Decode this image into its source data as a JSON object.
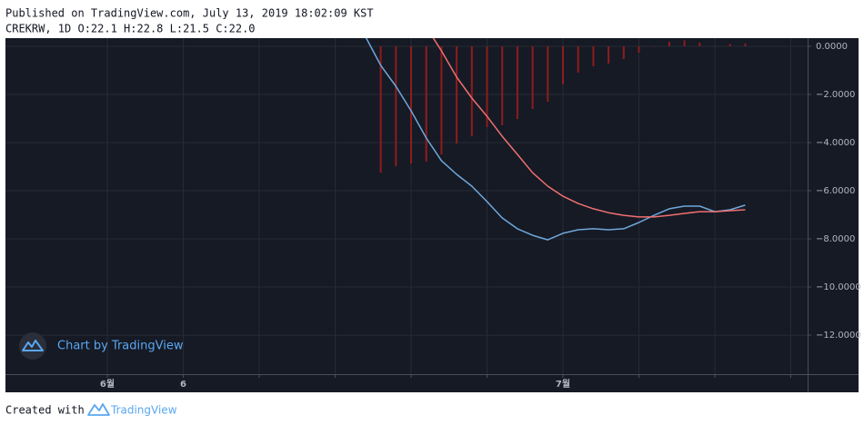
{
  "chart_data": {
    "type": "line",
    "title": "Published on TradingView.com, July 13, 2019 18:02:09 KST",
    "subtitle": "CREKRW, 1D O:22.1 H:22.8 L:21.5 C:22.0",
    "watermark": "Chart by TradingView",
    "footer": {
      "prefix": "Created with",
      "brand": "TradingView"
    },
    "categories": [
      "6월",
      null,
      null,
      null,
      null,
      "6",
      null,
      null,
      null,
      null,
      null,
      null,
      null,
      null,
      null,
      null,
      null,
      null,
      null,
      null,
      null,
      null,
      null,
      null,
      null,
      null,
      null,
      null,
      null,
      null,
      "7월",
      null,
      null,
      null,
      null,
      null,
      null,
      null,
      null,
      null,
      null,
      null,
      null
    ],
    "series": [
      {
        "type": "bar",
        "color": "#8e1c1c",
        "values": [
          null,
          null,
          null,
          null,
          null,
          null,
          null,
          null,
          null,
          null,
          null,
          null,
          null,
          null,
          null,
          null,
          null,
          null,
          -5.25,
          -4.98,
          -4.87,
          -4.79,
          -4.49,
          -4.04,
          -3.74,
          -3.36,
          -3.28,
          -3.02,
          -2.6,
          -2.3,
          -1.58,
          -1.09,
          -0.83,
          -0.72,
          -0.53,
          -0.26,
          0,
          0.2,
          0.25,
          0.15,
          0,
          0.1,
          0.12
        ]
      },
      {
        "type": "line",
        "color": "#6fa8dc",
        "values": [
          null,
          null,
          null,
          null,
          null,
          null,
          null,
          null,
          null,
          null,
          null,
          null,
          null,
          null,
          null,
          null,
          null,
          0.4,
          -0.79,
          -1.66,
          -2.68,
          -3.81,
          -4.75,
          -5.32,
          -5.81,
          -6.45,
          -7.13,
          -7.58,
          -7.85,
          -8.04,
          -7.77,
          -7.62,
          -7.58,
          -7.62,
          -7.58,
          -7.32,
          -7.02,
          -6.75,
          -6.64,
          -6.64,
          -6.87,
          -6.79,
          -6.6
        ]
      },
      {
        "type": "line",
        "color": "#f07070",
        "values": [
          null,
          null,
          null,
          null,
          null,
          null,
          null,
          null,
          null,
          null,
          null,
          null,
          null,
          null,
          null,
          null,
          null,
          null,
          null,
          null,
          null,
          0.8,
          -0.19,
          -1.28,
          -2.15,
          -2.91,
          -3.74,
          -4.49,
          -5.25,
          -5.81,
          -6.23,
          -6.53,
          -6.75,
          -6.91,
          -7.02,
          -7.09,
          -7.09,
          -7.02,
          -6.94,
          -6.87,
          -6.87,
          -6.83,
          -6.79
        ]
      }
    ],
    "ylim": [
      -13.62,
      0.34
    ],
    "yticks": [
      {
        "value": 0,
        "label": "0.0000"
      },
      {
        "value": -2,
        "label": "−2.0000"
      },
      {
        "value": -4,
        "label": "−4.0000"
      },
      {
        "value": -6,
        "label": "−6.0000"
      },
      {
        "value": -8,
        "label": "−8.0000"
      },
      {
        "value": -10,
        "label": "−10.0000"
      },
      {
        "value": -12,
        "label": "−12.0000"
      }
    ],
    "grid": true,
    "background": "#161a25"
  }
}
